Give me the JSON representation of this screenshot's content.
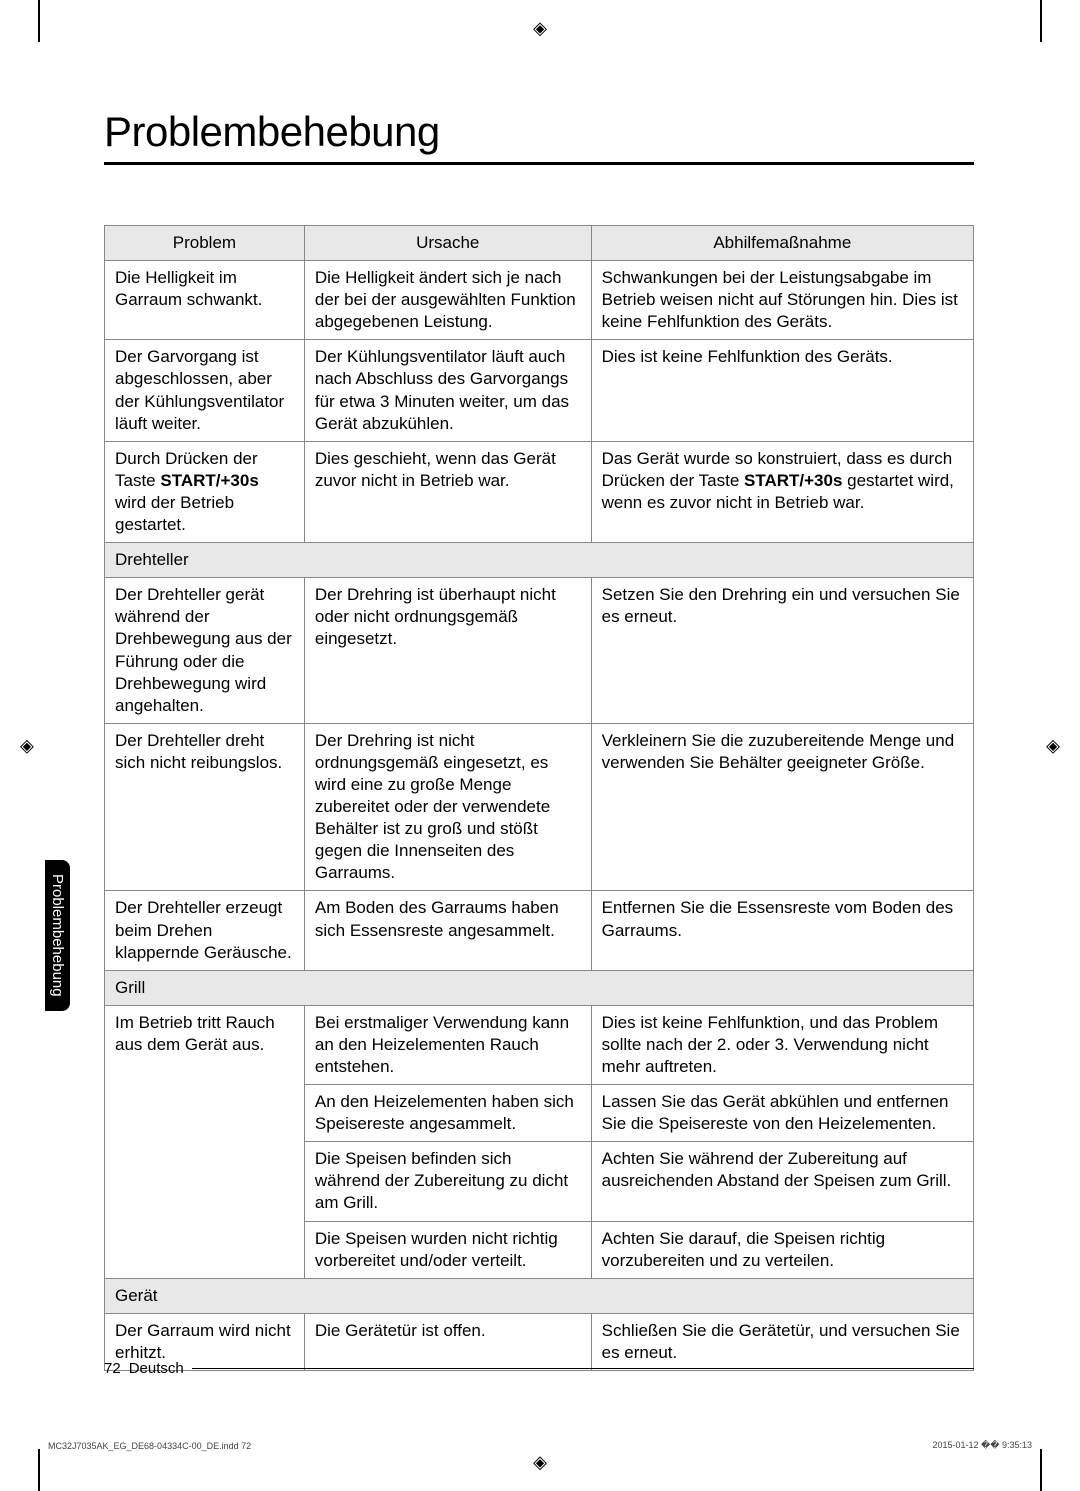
{
  "title": "Problembehebung",
  "headers": {
    "problem": "Problem",
    "cause": "Ursache",
    "remedy": "Abhilfemaßnahme"
  },
  "rows": [
    {
      "t": "row",
      "p": "Die Helligkeit im Garraum schwankt.",
      "c": "Die Helligkeit ändert sich je nach der bei der ausgewählten Funktion abgegebenen Leistung.",
      "r": "Schwankungen bei der Leistungsabgabe im Betrieb weisen nicht auf Störungen hin. Dies ist keine Fehlfunktion des Geräts."
    },
    {
      "t": "row",
      "p": "Der Garvorgang ist abgeschlossen, aber der Kühlungsventilator läuft weiter.",
      "c": "Der Kühlungsventilator läuft auch nach Abschluss des Garvorgangs für etwa 3 Minuten weiter, um das Gerät abzukühlen.",
      "r": "Dies ist keine Fehlfunktion des Geräts."
    },
    {
      "t": "row",
      "p_html": "Durch Drücken der Taste <span class=\"bold\">START/+30s</span> wird der Betrieb gestartet.",
      "c": "Dies geschieht, wenn das Gerät zuvor nicht in Betrieb war.",
      "r_html": "Das Gerät wurde so konstruiert, dass es durch Drücken der Taste <span class=\"bold\">START/+30s</span> gestartet wird, wenn es zuvor nicht in Betrieb war."
    },
    {
      "t": "section",
      "label": "Drehteller"
    },
    {
      "t": "row",
      "p": "Der Drehteller gerät während der Drehbewegung aus der Führung oder die Drehbewegung wird angehalten.",
      "c": "Der Drehring ist überhaupt nicht oder nicht ordnungsgemäß eingesetzt.",
      "r": "Setzen Sie den Drehring ein und versuchen Sie es erneut."
    },
    {
      "t": "row",
      "p": "Der Drehteller dreht sich nicht reibungslos.",
      "c": "Der Drehring ist nicht ordnungsgemäß eingesetzt, es wird eine zu große Menge zubereitet oder der verwendete Behälter ist zu groß und stößt gegen die Innenseiten des Garraums.",
      "r": "Verkleinern Sie die zuzubereitende Menge und verwenden Sie Behälter geeigneter Größe."
    },
    {
      "t": "row",
      "p": "Der Drehteller erzeugt beim Drehen klappernde Geräusche.",
      "c": "Am Boden des Garraums haben sich Essensreste angesammelt.",
      "r": "Entfernen Sie die Essensreste vom Boden des Garraums."
    },
    {
      "t": "section",
      "label": "Grill"
    },
    {
      "t": "row",
      "p": "Im Betrieb tritt Rauch aus dem Gerät aus.",
      "p_rowspan": 4,
      "c": "Bei erstmaliger Verwendung kann an den Heizelementen Rauch entstehen.",
      "r": "Dies ist keine Fehlfunktion, und das Problem sollte nach der 2. oder 3. Verwendung nicht mehr auftreten."
    },
    {
      "t": "cont",
      "c": "An den Heizelementen haben sich Speisereste angesammelt.",
      "r": "Lassen Sie das Gerät abkühlen und entfernen Sie die Speisereste von den Heizelementen."
    },
    {
      "t": "cont",
      "c": "Die Speisen befinden sich während der Zubereitung zu dicht am Grill.",
      "r": "Achten Sie während der Zubereitung auf ausreichenden Abstand der Speisen zum Grill."
    },
    {
      "t": "cont",
      "c": "Die Speisen wurden nicht richtig vorbereitet und/oder verteilt.",
      "r": "Achten Sie darauf, die Speisen richtig vorzubereiten und zu verteilen."
    },
    {
      "t": "section",
      "label": "Gerät"
    },
    {
      "t": "row",
      "p": "Der Garraum wird nicht erhitzt.",
      "c": "Die Gerätetür ist offen.",
      "r": "Schließen Sie die Gerätetür, und versuchen Sie es erneut."
    }
  ],
  "sideTab": "Problembehebung",
  "footer": {
    "pageNum": "72",
    "lang": "Deutsch"
  },
  "footline": {
    "left": "MC32J7035AK_EG_DE68-04334C-00_DE.indd   72",
    "right": "2015-01-12   �� 9:35:13"
  }
}
